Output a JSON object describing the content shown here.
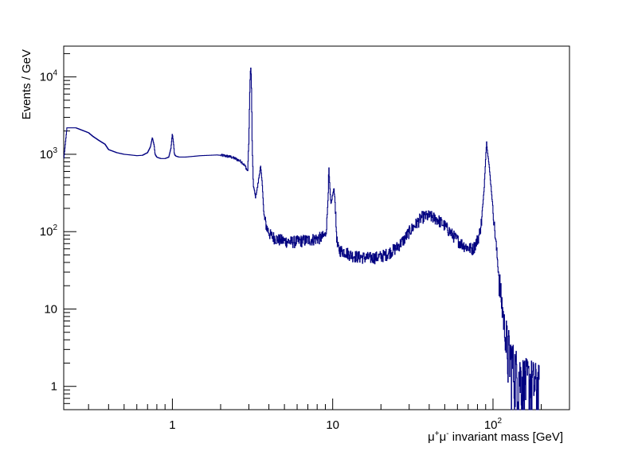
{
  "chart_data": {
    "type": "line",
    "title": "",
    "xlabel_parts": [
      "μ",
      "+",
      "μ",
      "-",
      " invariant mass [GeV]"
    ],
    "ylabel": "Events / GeV",
    "x_scale": "log",
    "y_scale": "log",
    "xlim": [
      0.21,
      300
    ],
    "ylim": [
      0.5,
      25000
    ],
    "grid": false,
    "legend": "none",
    "line_color": "#000080",
    "x_ticks": [
      {
        "value": 1,
        "label": "1"
      },
      {
        "value": 10,
        "label": "10"
      },
      {
        "value": 100,
        "label": "10",
        "sup": "2"
      }
    ],
    "y_ticks": [
      {
        "value": 1,
        "label": "1"
      },
      {
        "value": 10,
        "label": "10"
      },
      {
        "value": 100,
        "label": "10",
        "sup": "2"
      },
      {
        "value": 1000,
        "label": "10",
        "sup": "3"
      },
      {
        "value": 10000,
        "label": "10",
        "sup": "4"
      }
    ],
    "series": [
      {
        "x": [
          0.21,
          0.22,
          0.25,
          0.3,
          0.32,
          0.35,
          0.38,
          0.4,
          0.45,
          0.5,
          0.55,
          0.6,
          0.65,
          0.7,
          0.73,
          0.75,
          0.77,
          0.78,
          0.8,
          0.82,
          0.85,
          0.9,
          0.95,
          0.98,
          1.0,
          1.02,
          1.03,
          1.05,
          1.1,
          1.2,
          1.35,
          1.5,
          1.7,
          1.9,
          2.1,
          2.3,
          2.5,
          2.7,
          2.85,
          2.95,
          3.0,
          3.05,
          3.08,
          3.1,
          3.12,
          3.15,
          3.2,
          3.3,
          3.4,
          3.55,
          3.65,
          3.69,
          3.72,
          3.78,
          3.9,
          4.1,
          4.5,
          5.0,
          5.5,
          6.0,
          6.5,
          7.0,
          7.5,
          8.0,
          8.5,
          9.0,
          9.2,
          9.4,
          9.46,
          9.55,
          9.75,
          10.0,
          10.2,
          10.36,
          10.5,
          10.7,
          11.0,
          12.0,
          13.0,
          14.0,
          15.0,
          17.0,
          19.0,
          20.0,
          22.0,
          25.0,
          28.0,
          30.0,
          33.0,
          36.0,
          40.0,
          45.0,
          50.0,
          55.0,
          60.0,
          65.0,
          70.0,
          75.0,
          78.0,
          82.0,
          85.0,
          88.0,
          90.0,
          91.2,
          92.5,
          95.0,
          98.0,
          102.0,
          107.0,
          112.0,
          117.0,
          122.0,
          128.0,
          135.0,
          143.0,
          152.0,
          162.0,
          172.0,
          182.0,
          195.0
        ],
        "y": [
          850,
          2200,
          2200,
          1900,
          1700,
          1500,
          1350,
          1150,
          1050,
          1000,
          980,
          960,
          970,
          1050,
          1250,
          1650,
          1300,
          1000,
          920,
          900,
          880,
          880,
          920,
          1200,
          1850,
          1300,
          1000,
          950,
          920,
          920,
          940,
          960,
          970,
          980,
          960,
          930,
          870,
          800,
          700,
          600,
          1500,
          9000,
          13500,
          11000,
          6000,
          1200,
          400,
          280,
          380,
          700,
          380,
          240,
          160,
          140,
          110,
          90,
          80,
          76,
          74,
          75,
          77,
          78,
          80,
          82,
          84,
          90,
          130,
          350,
          720,
          450,
          220,
          300,
          360,
          240,
          120,
          65,
          58,
          55,
          50,
          48,
          47,
          46,
          47,
          48,
          52,
          62,
          80,
          100,
          125,
          155,
          160,
          145,
          120,
          95,
          78,
          68,
          62,
          60,
          70,
          90,
          140,
          350,
          900,
          1450,
          1100,
          650,
          320,
          120,
          40,
          15,
          7,
          3.5,
          2.5,
          1.8,
          1.5,
          1.3,
          1.2,
          1.2,
          1.1,
          1.0
        ]
      }
    ]
  }
}
